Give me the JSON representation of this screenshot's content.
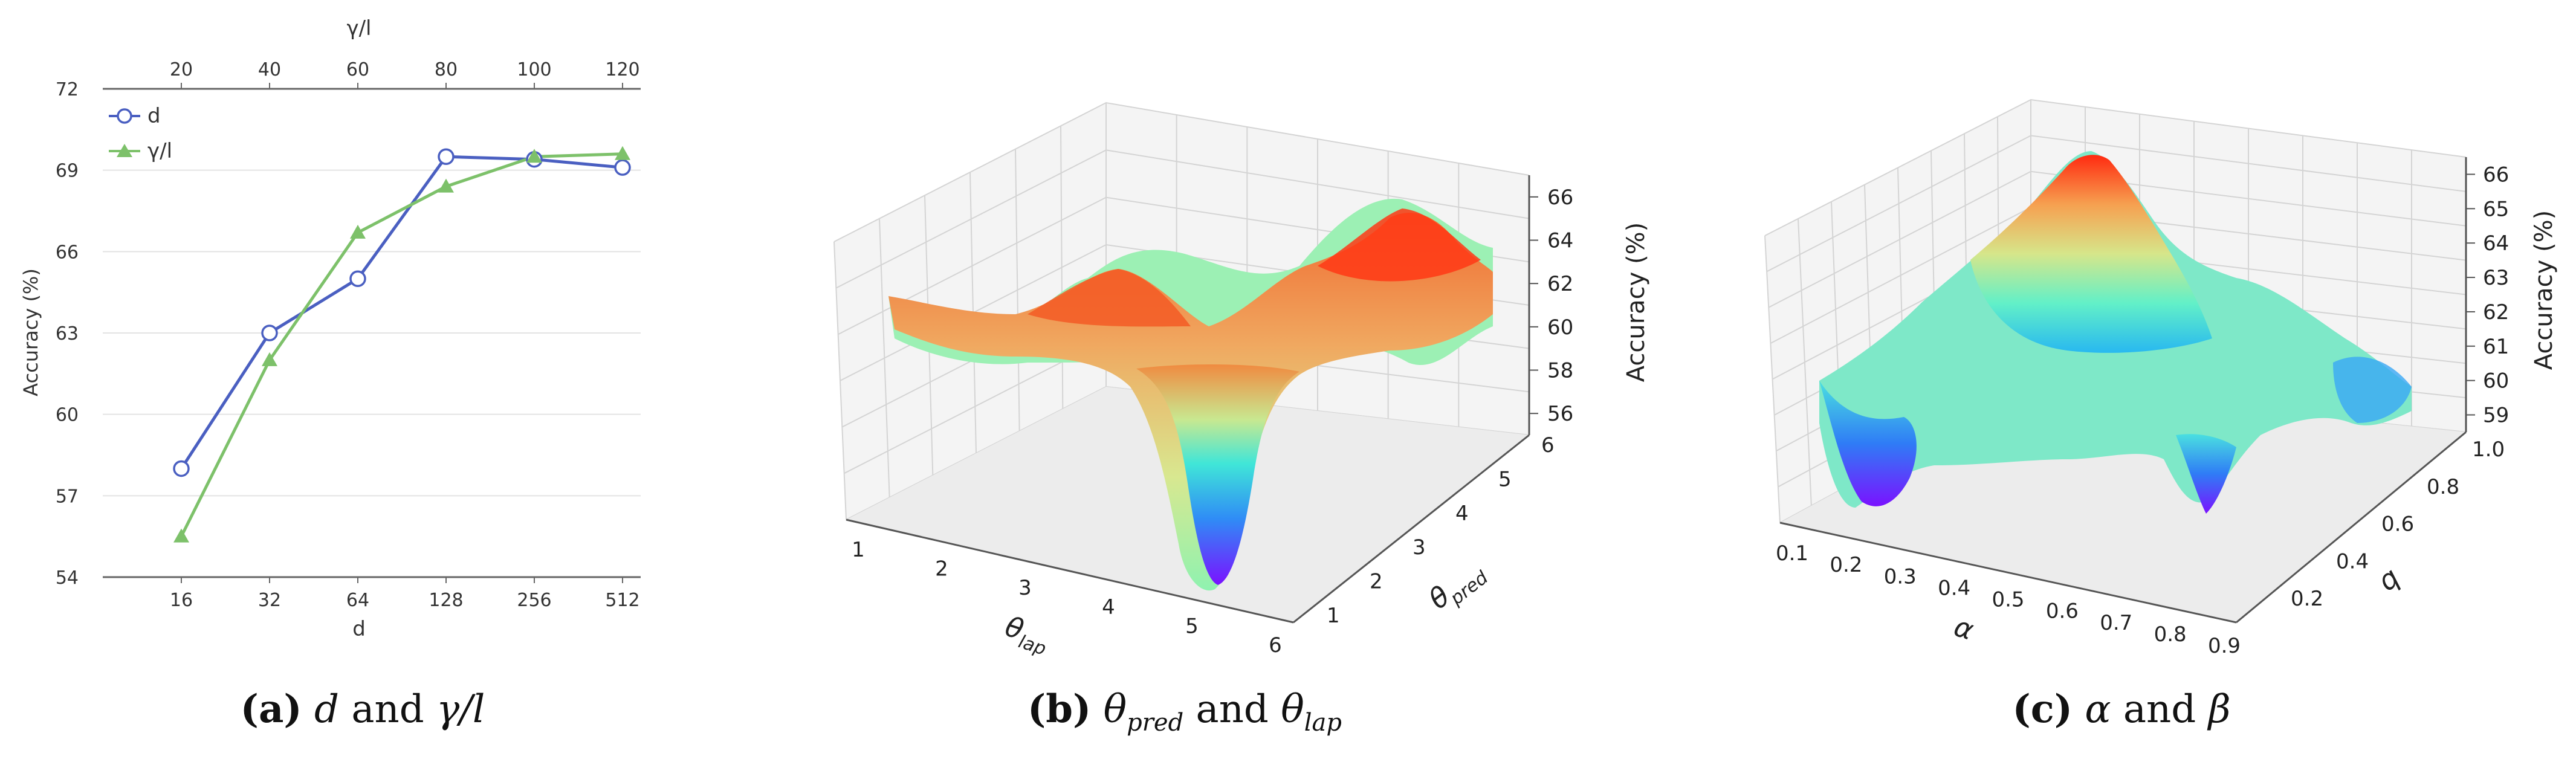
{
  "chart_data": [
    {
      "type": "line",
      "panel": "a",
      "caption": {
        "letter": "(a)",
        "pre": "d",
        "and": "and",
        "post": "γ/l"
      },
      "ylabel": "Accuracy (%)",
      "xlabel": "d",
      "top_xlabel": "γ/l",
      "categories": [
        "16",
        "32",
        "64",
        "128",
        "256",
        "512"
      ],
      "top_categories": [
        "20",
        "40",
        "60",
        "80",
        "100",
        "120"
      ],
      "ylim": [
        54,
        72
      ],
      "yticks": [
        "54",
        "57",
        "60",
        "63",
        "66",
        "69",
        "72"
      ],
      "grid": "horizontal",
      "legend": "top-left",
      "series": [
        {
          "name": "d",
          "marker": "open-circle",
          "color": "#4a5fc1",
          "values": [
            58.0,
            63.0,
            65.0,
            69.5,
            69.4,
            69.1
          ]
        },
        {
          "name": "γ/l",
          "marker": "triangle",
          "color": "#7dc16a",
          "values": [
            55.5,
            62.0,
            66.7,
            68.4,
            69.5,
            69.6
          ]
        }
      ]
    },
    {
      "type": "surface",
      "panel": "b",
      "caption": {
        "letter": "(b)",
        "a": "θ",
        "a_sub": "pred",
        "and": "and",
        "b": "θ",
        "b_sub": "lap"
      },
      "xlabel": "θ",
      "xlabel_sub": "lap",
      "ylabel": "θ",
      "ylabel_sub": "pred",
      "zlabel": "Accuracy (%)",
      "xticks": [
        "1",
        "2",
        "3",
        "4",
        "5",
        "6"
      ],
      "yticks": [
        "1",
        "2",
        "3",
        "4",
        "5",
        "6"
      ],
      "zticks": [
        "56",
        "58",
        "60",
        "62",
        "64",
        "66"
      ],
      "zlim": [
        55,
        67
      ],
      "colormap": "rainbow"
    },
    {
      "type": "surface",
      "panel": "c",
      "caption": {
        "letter": "(c)",
        "a": "α",
        "and": "and",
        "b": "β"
      },
      "xlabel": "α",
      "ylabel": "q",
      "zlabel": "Accuracy (%)",
      "xticks": [
        "0.1",
        "0.2",
        "0.3",
        "0.4",
        "0.5",
        "0.6",
        "0.7",
        "0.8",
        "0.9"
      ],
      "yticks": [
        "0.2",
        "0.4",
        "0.6",
        "0.8",
        "1.0"
      ],
      "zticks": [
        "59",
        "60",
        "61",
        "62",
        "63",
        "64",
        "65",
        "66"
      ],
      "zlim": [
        58.5,
        66.5
      ],
      "colormap": "rainbow"
    }
  ]
}
